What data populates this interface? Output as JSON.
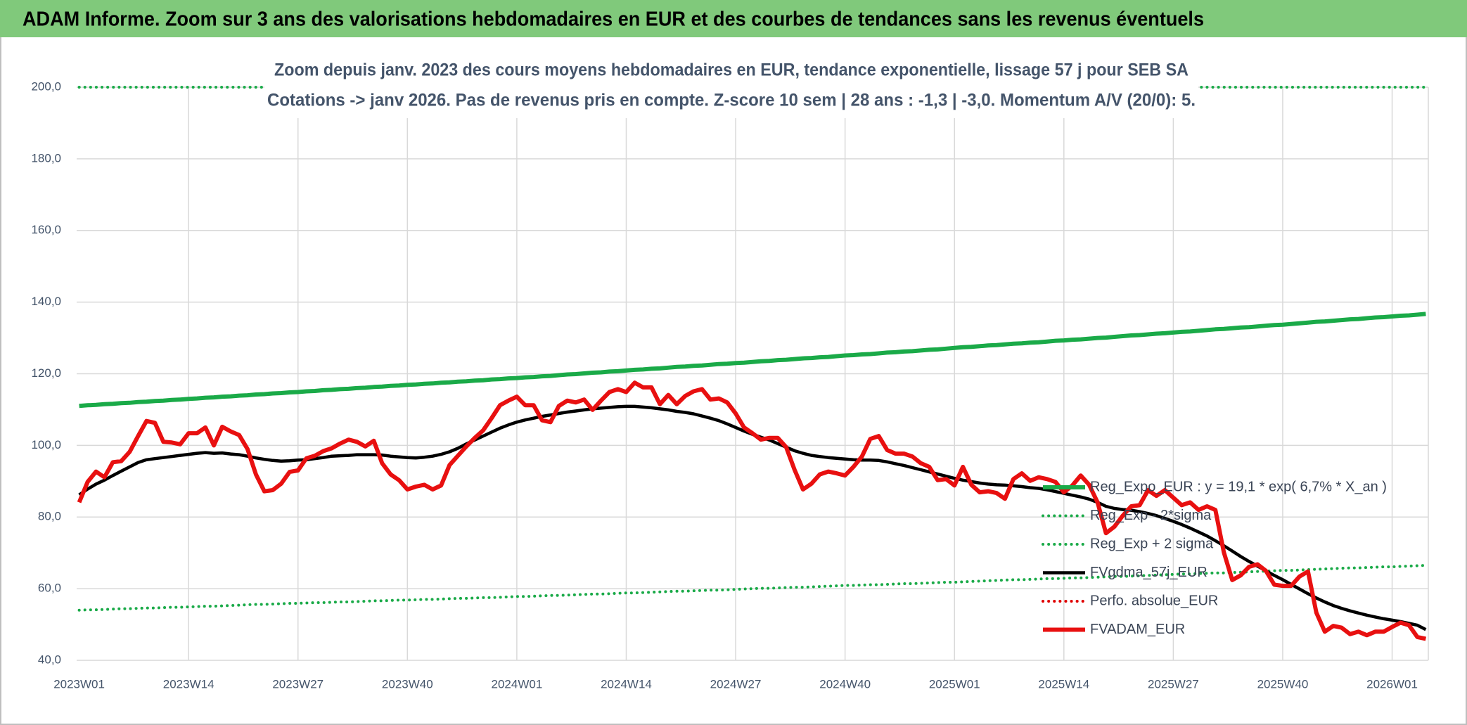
{
  "chart_data": {
    "type": "line",
    "title": "ADAM Informe. Zoom sur 3 ans des valorisations hebdomadaires en EUR et des courbes de tendances sans les revenus éventuels",
    "subtitle": [
      "Zoom depuis janv. 2023 des cours moyens hebdomadaires en EUR, tendance exponentielle, lissage 57 j pour SEB SA",
      "Cotations -> janv 2026. Pas de revenus pris en compte. Z-score 10 sem | 28 ans : -1,3 | -3,0. Momentum A/V (20/0): 5."
    ],
    "categories": [
      "2023W01",
      null,
      null,
      null,
      null,
      null,
      null,
      null,
      null,
      null,
      null,
      null,
      null,
      "2023W14",
      null,
      null,
      null,
      null,
      null,
      null,
      null,
      null,
      null,
      null,
      null,
      null,
      "2023W27",
      null,
      null,
      null,
      null,
      null,
      null,
      null,
      null,
      null,
      null,
      null,
      null,
      "2023W40",
      null,
      null,
      null,
      null,
      null,
      null,
      null,
      null,
      null,
      null,
      null,
      null,
      "2024W01",
      null,
      null,
      null,
      null,
      null,
      null,
      null,
      null,
      null,
      null,
      null,
      null,
      "2024W14",
      null,
      null,
      null,
      null,
      null,
      null,
      null,
      null,
      null,
      null,
      null,
      null,
      "2024W27",
      null,
      null,
      null,
      null,
      null,
      null,
      null,
      null,
      null,
      null,
      null,
      null,
      "2024W40",
      null,
      null,
      null,
      null,
      null,
      null,
      null,
      null,
      null,
      null,
      null,
      null,
      "2025W01",
      null,
      null,
      null,
      null,
      null,
      null,
      null,
      null,
      null,
      null,
      null,
      null,
      "2025W14",
      null,
      null,
      null,
      null,
      null,
      null,
      null,
      null,
      null,
      null,
      null,
      null,
      "2025W27",
      null,
      null,
      null,
      null,
      null,
      null,
      null,
      null,
      null,
      null,
      null,
      null,
      "2025W40",
      null,
      null,
      null,
      null,
      null,
      null,
      null,
      null,
      null,
      null,
      null,
      null,
      "2026W01",
      null,
      null,
      null,
      null
    ],
    "ylim": [
      40,
      200
    ],
    "yticks": [
      {
        "value": 40,
        "label": "40,0"
      },
      {
        "value": 60,
        "label": "60,0"
      },
      {
        "value": 80,
        "label": "80,0"
      },
      {
        "value": 100,
        "label": "100,0"
      },
      {
        "value": 120,
        "label": "120,0"
      },
      {
        "value": 140,
        "label": "140,0"
      },
      {
        "value": 160,
        "label": "160,0"
      },
      {
        "value": 180,
        "label": "180,0"
      },
      {
        "value": 200,
        "label": "200,0"
      }
    ],
    "grid": true,
    "legend": "right",
    "series": [
      {
        "name": "Reg_Expo_EUR : y = 19,1 * exp( 6,7% *  X_an )",
        "color": "#1aaa48",
        "style": "solid",
        "values": [
          111.0,
          111.2,
          111.3,
          111.5,
          111.6,
          111.8,
          111.9,
          112.1,
          112.2,
          112.4,
          112.5,
          112.7,
          112.8,
          113.0,
          113.1,
          113.3,
          113.4,
          113.6,
          113.7,
          113.9,
          114.0,
          114.2,
          114.3,
          114.5,
          114.6,
          114.8,
          114.9,
          115.1,
          115.2,
          115.4,
          115.5,
          115.7,
          115.8,
          116.0,
          116.1,
          116.3,
          116.4,
          116.6,
          116.7,
          116.9,
          117.0,
          117.2,
          117.3,
          117.5,
          117.6,
          117.8,
          117.9,
          118.1,
          118.2,
          118.4,
          118.5,
          118.7,
          118.8,
          119.0,
          119.1,
          119.3,
          119.4,
          119.6,
          119.8,
          119.9,
          120.1,
          120.3,
          120.4,
          120.6,
          120.7,
          120.9,
          121.1,
          121.2,
          121.4,
          121.5,
          121.7,
          121.9,
          122.0,
          122.2,
          122.3,
          122.5,
          122.7,
          122.8,
          123.0,
          123.1,
          123.3,
          123.5,
          123.6,
          123.8,
          123.9,
          124.1,
          124.3,
          124.4,
          124.6,
          124.7,
          124.9,
          125.1,
          125.2,
          125.4,
          125.5,
          125.7,
          125.9,
          126.0,
          126.2,
          126.3,
          126.5,
          126.7,
          126.8,
          127.0,
          127.2,
          127.4,
          127.5,
          127.7,
          127.9,
          128.0,
          128.2,
          128.4,
          128.5,
          128.7,
          128.8,
          129.0,
          129.2,
          129.3,
          129.5,
          129.6,
          129.8,
          130.0,
          130.1,
          130.3,
          130.5,
          130.7,
          130.8,
          131.0,
          131.2,
          131.3,
          131.5,
          131.7,
          131.8,
          132.0,
          132.2,
          132.4,
          132.5,
          132.7,
          132.9,
          133.0,
          133.2,
          133.4,
          133.6,
          133.7,
          133.9,
          134.1,
          134.3,
          134.5,
          134.6,
          134.8,
          135.0,
          135.2,
          135.3,
          135.5,
          135.7,
          135.8,
          136.0,
          136.2,
          136.3,
          136.5,
          136.7
        ]
      },
      {
        "name": "Reg_Exp - 2*sigma",
        "color": "#1aaa48",
        "style": "dotted",
        "values": [
          54.0,
          54.1,
          54.1,
          54.2,
          54.3,
          54.4,
          54.4,
          54.5,
          54.6,
          54.6,
          54.7,
          54.8,
          54.8,
          54.9,
          55.0,
          55.1,
          55.1,
          55.2,
          55.3,
          55.4,
          55.5,
          55.6,
          55.6,
          55.7,
          55.8,
          55.9,
          55.9,
          56.0,
          56.1,
          56.1,
          56.2,
          56.3,
          56.3,
          56.4,
          56.5,
          56.6,
          56.6,
          56.7,
          56.8,
          56.8,
          56.9,
          57.0,
          57.0,
          57.1,
          57.2,
          57.3,
          57.3,
          57.4,
          57.5,
          57.5,
          57.6,
          57.7,
          57.8,
          57.8,
          57.9,
          58.0,
          58.1,
          58.1,
          58.2,
          58.3,
          58.4,
          58.5,
          58.5,
          58.6,
          58.7,
          58.8,
          58.8,
          58.9,
          59.0,
          59.1,
          59.2,
          59.3,
          59.3,
          59.4,
          59.5,
          59.6,
          59.6,
          59.7,
          59.8,
          59.9,
          60.0,
          60.1,
          60.1,
          60.2,
          60.3,
          60.4,
          60.4,
          60.5,
          60.6,
          60.7,
          60.8,
          60.9,
          60.9,
          61.0,
          61.1,
          61.1,
          61.2,
          61.3,
          61.4,
          61.4,
          61.5,
          61.6,
          61.7,
          61.8,
          61.8,
          61.9,
          62.0,
          62.1,
          62.2,
          62.3,
          62.4,
          62.5,
          62.5,
          62.6,
          62.7,
          62.8,
          62.8,
          62.9,
          63.0,
          63.0,
          63.1,
          63.2,
          63.3,
          63.4,
          63.4,
          63.5,
          63.6,
          63.7,
          63.8,
          63.9,
          64.0,
          64.1,
          64.1,
          64.2,
          64.3,
          64.4,
          64.4,
          64.5,
          64.6,
          64.7,
          64.8,
          64.9,
          65.0,
          65.1,
          65.1,
          65.2,
          65.3,
          65.4,
          65.5,
          65.6,
          65.7,
          65.8,
          65.8,
          65.9,
          66.0,
          66.1,
          66.1,
          66.2,
          66.3,
          66.4,
          66.5
        ]
      },
      {
        "name": "Reg_Exp + 2 sigma",
        "color": "#1aaa48",
        "style": "dotted",
        "values": [
          200,
          200,
          200,
          200,
          200,
          200,
          200,
          200,
          200,
          200,
          200,
          200,
          200,
          200,
          200,
          200,
          200,
          200,
          200,
          200,
          200,
          200,
          200,
          200,
          200,
          200,
          200,
          200,
          200,
          200,
          200,
          200,
          200,
          200,
          200,
          200,
          200,
          200,
          200,
          200,
          200,
          200,
          200,
          200,
          200,
          200,
          200,
          200,
          200,
          200,
          200,
          200,
          200,
          200,
          200,
          200,
          200,
          200,
          200,
          200,
          200,
          200,
          200,
          200,
          200,
          200,
          200,
          200,
          200,
          200,
          200,
          200,
          200,
          200,
          200,
          200,
          200,
          200,
          200,
          200,
          200,
          200,
          200,
          200,
          200,
          200,
          200,
          200,
          200,
          200,
          200,
          200,
          200,
          200,
          200,
          200,
          200,
          200,
          200,
          200,
          200,
          200,
          200,
          200,
          200,
          200,
          200,
          200,
          200,
          200,
          200,
          200,
          200,
          200,
          200,
          200,
          200,
          200,
          200,
          200,
          200,
          200,
          200,
          200,
          200,
          200,
          200,
          200,
          200,
          200,
          200,
          200,
          200,
          200,
          200,
          200,
          200,
          200,
          200,
          200,
          200,
          200,
          200,
          200,
          200,
          200,
          200,
          200,
          200,
          200,
          200,
          200,
          200,
          200,
          200,
          200,
          200,
          200,
          200,
          200,
          200
        ]
      },
      {
        "name": "FVgdma_57j_EUR",
        "color": "#000000",
        "style": "solid",
        "values": [
          86.2,
          87.8,
          89.2,
          90.3,
          91.6,
          92.8,
          94.0,
          95.2,
          96.0,
          96.3,
          96.6,
          96.9,
          97.2,
          97.5,
          97.8,
          98.0,
          97.8,
          97.9,
          97.6,
          97.4,
          97.0,
          96.5,
          96.1,
          95.8,
          95.6,
          95.7,
          95.9,
          96.0,
          96.3,
          96.6,
          97.0,
          97.1,
          97.2,
          97.4,
          97.4,
          97.4,
          97.3,
          97.0,
          96.8,
          96.6,
          96.5,
          96.7,
          97.0,
          97.5,
          98.2,
          99.2,
          100.4,
          101.5,
          102.6,
          103.7,
          104.8,
          105.7,
          106.5,
          107.1,
          107.6,
          108.1,
          108.5,
          108.9,
          109.3,
          109.6,
          109.9,
          110.2,
          110.4,
          110.6,
          110.8,
          110.9,
          110.9,
          110.7,
          110.5,
          110.2,
          109.9,
          109.5,
          109.2,
          108.8,
          108.2,
          107.6,
          106.9,
          106.0,
          105.0,
          104.0,
          103.1,
          102.3,
          101.5,
          100.5,
          99.5,
          98.5,
          97.8,
          97.2,
          96.9,
          96.6,
          96.4,
          96.2,
          96.0,
          95.9,
          95.9,
          95.8,
          95.4,
          94.9,
          94.4,
          93.8,
          93.2,
          92.6,
          92.0,
          91.4,
          90.8,
          90.3,
          89.9,
          89.5,
          89.2,
          89.0,
          88.9,
          88.7,
          88.5,
          88.2,
          88.0,
          87.6,
          87.1,
          86.6,
          86.1,
          85.6,
          85.0,
          84.1,
          83.0,
          82.4,
          82.1,
          81.9,
          81.5,
          81.0,
          80.4,
          79.6,
          78.8,
          77.9,
          76.9,
          75.8,
          74.7,
          73.4,
          72.0,
          70.5,
          69.0,
          67.6,
          66.3,
          65.0,
          63.7,
          62.5,
          61.2,
          59.9,
          58.6,
          57.4,
          56.3,
          55.3,
          54.5,
          53.8,
          53.2,
          52.6,
          52.1,
          51.6,
          51.2,
          50.8,
          50.3,
          49.8,
          48.6
        ]
      },
      {
        "name": "Perfo. absolue_EUR",
        "color": "#e00000",
        "style": "dotted",
        "values": [
          null,
          null,
          null,
          null,
          null,
          null,
          null,
          null,
          null,
          null,
          null,
          null,
          null,
          null,
          null,
          null,
          null,
          null,
          null,
          null,
          null,
          null,
          null,
          null,
          null,
          null,
          null,
          null,
          null,
          null,
          null,
          null,
          null,
          null,
          null,
          null,
          null,
          null,
          null,
          null,
          null,
          null,
          null,
          null,
          null,
          null,
          null,
          null,
          null,
          null,
          null,
          null,
          null,
          null,
          null,
          null,
          null,
          null,
          null,
          null,
          null,
          null,
          null,
          null,
          null,
          null,
          null,
          null,
          null,
          null,
          null,
          null,
          null,
          null,
          null,
          null,
          null,
          null,
          null,
          null,
          null,
          null,
          null,
          null,
          null,
          null,
          null,
          null,
          null,
          null,
          null,
          null,
          null,
          null,
          null,
          null,
          null,
          null,
          null,
          null,
          null,
          null,
          null,
          null,
          null,
          null,
          null,
          null,
          null,
          null,
          null,
          null,
          null,
          null,
          null,
          null,
          null,
          null,
          null,
          null,
          null,
          null,
          null,
          null,
          null,
          null,
          null,
          null,
          null,
          null,
          null,
          null,
          null,
          null,
          null,
          null,
          null,
          null,
          null,
          null,
          null,
          null,
          null,
          null,
          null,
          null,
          null,
          null,
          null,
          null,
          null,
          null,
          null,
          null,
          null,
          null,
          null,
          null,
          null,
          null,
          null
        ]
      },
      {
        "name": "FVADAM_EUR",
        "color": "#e81010",
        "style": "solid",
        "values": [
          84.1,
          89.8,
          92.7,
          91.1,
          95.3,
          95.6,
          98.2,
          102.6,
          106.8,
          106.3,
          101.0,
          100.8,
          100.3,
          103.4,
          103.4,
          105.0,
          100.0,
          105.2,
          103.9,
          102.9,
          99.0,
          91.9,
          87.2,
          87.5,
          89.3,
          92.6,
          93.0,
          96.4,
          97.1,
          98.4,
          99.2,
          100.5,
          101.6,
          101.0,
          99.7,
          101.3,
          95.0,
          91.9,
          90.3,
          87.7,
          88.5,
          89.0,
          87.7,
          88.8,
          94.5,
          97.1,
          99.7,
          102.1,
          104.2,
          107.6,
          111.2,
          112.5,
          113.6,
          111.2,
          111.2,
          107.0,
          106.5,
          111.0,
          112.5,
          112.0,
          112.8,
          109.9,
          112.5,
          114.9,
          115.7,
          114.9,
          117.5,
          116.2,
          116.2,
          111.5,
          114.1,
          111.5,
          113.8,
          115.1,
          115.7,
          112.8,
          113.1,
          112.0,
          108.9,
          105.0,
          103.4,
          101.6,
          102.1,
          102.1,
          99.5,
          93.2,
          87.7,
          89.3,
          91.9,
          92.7,
          92.2,
          91.6,
          94.0,
          96.9,
          101.8,
          102.6,
          98.7,
          97.7,
          97.7,
          96.9,
          95.0,
          94.0,
          90.3,
          90.6,
          88.8,
          94.0,
          89.0,
          86.9,
          87.2,
          86.7,
          85.1,
          90.6,
          92.2,
          90.1,
          91.1,
          90.6,
          89.8,
          86.9,
          88.8,
          91.6,
          89.0,
          84.1,
          75.5,
          77.3,
          80.4,
          83.0,
          83.3,
          87.5,
          85.9,
          87.5,
          85.4,
          83.3,
          84.1,
          82.0,
          83.0,
          82.0,
          70.2,
          62.4,
          63.7,
          66.1,
          66.8,
          65.0,
          61.1,
          60.8,
          60.8,
          63.4,
          64.8,
          53.3,
          48.0,
          49.6,
          49.1,
          47.3,
          48.0,
          47.0,
          48.0,
          48.0,
          49.3,
          50.5,
          49.8,
          46.5,
          46.0
        ]
      }
    ]
  }
}
